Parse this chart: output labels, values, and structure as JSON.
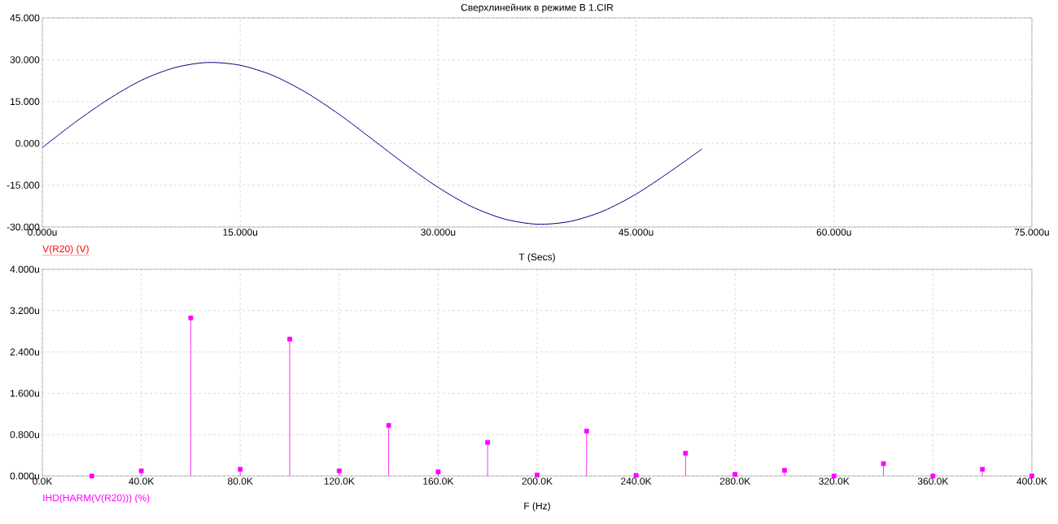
{
  "chart_data": [
    {
      "type": "line",
      "title": "Сверхлинейник в режиме B 1.CIR",
      "xlabel": "T (Secs)",
      "grid": true,
      "xlim": [
        0,
        75
      ],
      "ylim": [
        -30,
        45
      ],
      "xticks": [
        {
          "value": 0,
          "label": "0.000u"
        },
        {
          "value": 15,
          "label": "15.000u"
        },
        {
          "value": 30,
          "label": "30.000u"
        },
        {
          "value": 45,
          "label": "45.000u"
        },
        {
          "value": 60,
          "label": "60.000u"
        },
        {
          "value": 75,
          "label": "75.000u"
        }
      ],
      "yticks": [
        {
          "value": -30,
          "label": "-30.000"
        },
        {
          "value": -15,
          "label": "-15.000"
        },
        {
          "value": 0,
          "label": "0.000"
        },
        {
          "value": 15,
          "label": "15.000"
        },
        {
          "value": 30,
          "label": "30.000"
        },
        {
          "value": 45,
          "label": "45.000"
        }
      ],
      "series": [
        {
          "name": "V(R20) (V)",
          "color": "#000080",
          "x": [
            0,
            2.5,
            5,
            7.5,
            10,
            12.5,
            15,
            17.5,
            20,
            22.5,
            25,
            27.5,
            30,
            32.5,
            35,
            37.5,
            40,
            42.5,
            45,
            47.5,
            50
          ],
          "values": [
            -1.5,
            7.6,
            15.8,
            22.6,
            27.1,
            29.0,
            28.0,
            24.3,
            18.2,
            10.4,
            1.5,
            -7.5,
            -15.8,
            -22.6,
            -27.1,
            -29.0,
            -28.0,
            -24.3,
            -18.2,
            -10.4,
            -2.0
          ]
        }
      ]
    },
    {
      "type": "lollipop",
      "xlabel": "F (Hz)",
      "grid": true,
      "marker": "square",
      "xlim": [
        0,
        400
      ],
      "ylim": [
        0,
        4
      ],
      "xticks": [
        {
          "value": 0,
          "label": "0.0K"
        },
        {
          "value": 40,
          "label": "40.0K"
        },
        {
          "value": 80,
          "label": "80.0K"
        },
        {
          "value": 120,
          "label": "120.0K"
        },
        {
          "value": 160,
          "label": "160.0K"
        },
        {
          "value": 200,
          "label": "200.0K"
        },
        {
          "value": 240,
          "label": "240.0K"
        },
        {
          "value": 280,
          "label": "280.0K"
        },
        {
          "value": 320,
          "label": "320.0K"
        },
        {
          "value": 360,
          "label": "360.0K"
        },
        {
          "value": 400,
          "label": "400.0K"
        }
      ],
      "yticks": [
        {
          "value": 0,
          "label": "0.000u"
        },
        {
          "value": 0.8,
          "label": "0.800u"
        },
        {
          "value": 1.6,
          "label": "1.600u"
        },
        {
          "value": 2.4,
          "label": "2.400u"
        },
        {
          "value": 3.2,
          "label": "3.200u"
        },
        {
          "value": 4,
          "label": "4.000u"
        }
      ],
      "series": [
        {
          "name": "IHD(HARM(V(R20))) (%)",
          "color": "#ff00ff",
          "x": [
            20,
            40,
            60,
            80,
            100,
            120,
            140,
            160,
            180,
            200,
            220,
            240,
            260,
            280,
            300,
            320,
            340,
            360,
            380,
            400
          ],
          "values": [
            0.0,
            0.1,
            3.06,
            0.13,
            2.65,
            0.1,
            0.98,
            0.08,
            0.65,
            0.02,
            0.87,
            0.01,
            0.44,
            0.03,
            0.11,
            0.0,
            0.24,
            0.0,
            0.13,
            0.0
          ]
        }
      ]
    }
  ]
}
